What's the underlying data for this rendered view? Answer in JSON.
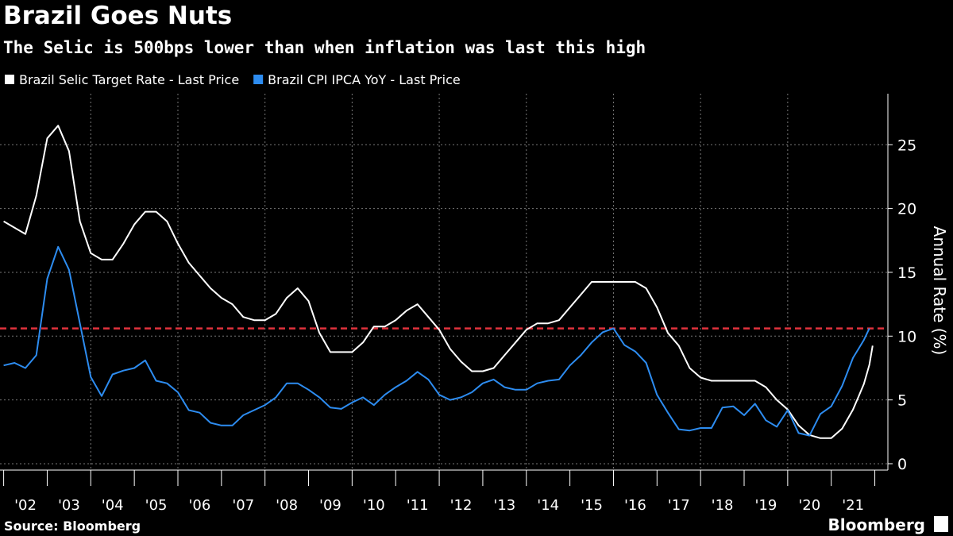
{
  "chart_data": {
    "type": "line",
    "title": "Brazil Goes Nuts",
    "subtitle": "The Selic is 500bps lower than when inflation was last this high",
    "y_label": "Annual Rate (%)",
    "source": "Source: Bloomberg",
    "brand": "Bloomberg",
    "reference_line": {
      "value": 10.6,
      "color": "#e0323c"
    },
    "x": [
      2002,
      2002.25,
      2002.5,
      2002.75,
      2003,
      2003.25,
      2003.5,
      2003.75,
      2004,
      2004.25,
      2004.5,
      2004.75,
      2005,
      2005.25,
      2005.5,
      2005.75,
      2006,
      2006.25,
      2006.5,
      2006.75,
      2007,
      2007.25,
      2007.5,
      2007.75,
      2008,
      2008.25,
      2008.5,
      2008.75,
      2009,
      2009.25,
      2009.5,
      2009.75,
      2010,
      2010.25,
      2010.5,
      2010.75,
      2011,
      2011.25,
      2011.5,
      2011.75,
      2012,
      2012.25,
      2012.5,
      2012.75,
      2013,
      2013.25,
      2013.5,
      2013.75,
      2014,
      2014.25,
      2014.5,
      2014.75,
      2015,
      2015.25,
      2015.5,
      2015.75,
      2016,
      2016.25,
      2016.5,
      2016.75,
      2017,
      2017.25,
      2017.5,
      2017.75,
      2018,
      2018.25,
      2018.5,
      2018.75,
      2019,
      2019.25,
      2019.5,
      2019.75,
      2020,
      2020.25,
      2020.5,
      2020.75,
      2021,
      2021.25,
      2021.5,
      2021.625,
      2021.75,
      2021.875,
      2021.95
    ],
    "series": [
      {
        "name": "Brazil Selic Target Rate - Last Price",
        "color": "#ffffff",
        "values": [
          19,
          18.5,
          18,
          21,
          25.5,
          26.5,
          24.5,
          19,
          16.5,
          16,
          16,
          17.25,
          18.75,
          19.75,
          19.75,
          19,
          17.25,
          15.75,
          14.75,
          13.75,
          13,
          12.5,
          11.5,
          11.25,
          11.25,
          11.75,
          13,
          13.75,
          12.75,
          10.25,
          8.75,
          8.75,
          8.75,
          9.5,
          10.75,
          10.75,
          11.25,
          12,
          12.5,
          11.5,
          10.5,
          9,
          8,
          7.25,
          7.25,
          7.5,
          8.5,
          9.5,
          10.5,
          11,
          11,
          11.25,
          12.25,
          13.25,
          14.25,
          14.25,
          14.25,
          14.25,
          14.25,
          13.75,
          12.25,
          10.25,
          9.25,
          7.5,
          6.75,
          6.5,
          6.5,
          6.5,
          6.5,
          6.5,
          6,
          5,
          4.25,
          3,
          2.25,
          2,
          2,
          2.75,
          4.25,
          5.25,
          6.25,
          7.75,
          9.25
        ]
      },
      {
        "name": "Brazil CPI IPCA YoY - Last Price",
        "color": "#2d8cf0",
        "values": [
          7.7,
          7.9,
          7.5,
          8.5,
          14.5,
          17,
          15.2,
          11,
          6.8,
          5.3,
          7,
          7.3,
          7.5,
          8.1,
          6.5,
          6.3,
          5.6,
          4.2,
          4,
          3.2,
          3,
          3,
          3.8,
          4.2,
          4.6,
          5.2,
          6.3,
          6.3,
          5.8,
          5.2,
          4.4,
          4.3,
          4.8,
          5.2,
          4.6,
          5.4,
          6,
          6.5,
          7.2,
          6.6,
          5.4,
          5,
          5.2,
          5.6,
          6.3,
          6.6,
          6,
          5.8,
          5.8,
          6.3,
          6.5,
          6.6,
          7.7,
          8.5,
          9.5,
          10.3,
          10.6,
          9.3,
          8.8,
          7.9,
          5.4,
          4,
          2.7,
          2.6,
          2.8,
          2.8,
          4.4,
          4.5,
          3.8,
          4.7,
          3.4,
          2.9,
          4.2,
          2.4,
          2.2,
          3.9,
          4.5,
          6.1,
          8.3,
          9,
          9.7,
          10.6,
          null
        ]
      }
    ],
    "xlim": [
      2001.916,
      2022.3
    ],
    "xticks": [
      {
        "value": 2002.5,
        "label": "'02"
      },
      {
        "value": 2003.5,
        "label": "'03"
      },
      {
        "value": 2004.5,
        "label": "'04"
      },
      {
        "value": 2005.5,
        "label": "'05"
      },
      {
        "value": 2006.5,
        "label": "'06"
      },
      {
        "value": 2007.5,
        "label": "'07"
      },
      {
        "value": 2008.5,
        "label": "'08"
      },
      {
        "value": 2009.5,
        "label": "'09"
      },
      {
        "value": 2010.5,
        "label": "'10"
      },
      {
        "value": 2011.5,
        "label": "'11"
      },
      {
        "value": 2012.5,
        "label": "'12"
      },
      {
        "value": 2013.5,
        "label": "'13"
      },
      {
        "value": 2014.5,
        "label": "'14"
      },
      {
        "value": 2015.5,
        "label": "'15"
      },
      {
        "value": 2016.5,
        "label": "'16"
      },
      {
        "value": 2017.5,
        "label": "'17"
      },
      {
        "value": 2018.5,
        "label": "'18"
      },
      {
        "value": 2019.5,
        "label": "'19"
      },
      {
        "value": 2020.5,
        "label": "'20"
      },
      {
        "value": 2021.5,
        "label": "'21"
      }
    ],
    "ylim": [
      -0.5,
      29
    ],
    "yticks": [
      0,
      5,
      10,
      15,
      20,
      25
    ],
    "grid": true,
    "legend": "top-left"
  }
}
